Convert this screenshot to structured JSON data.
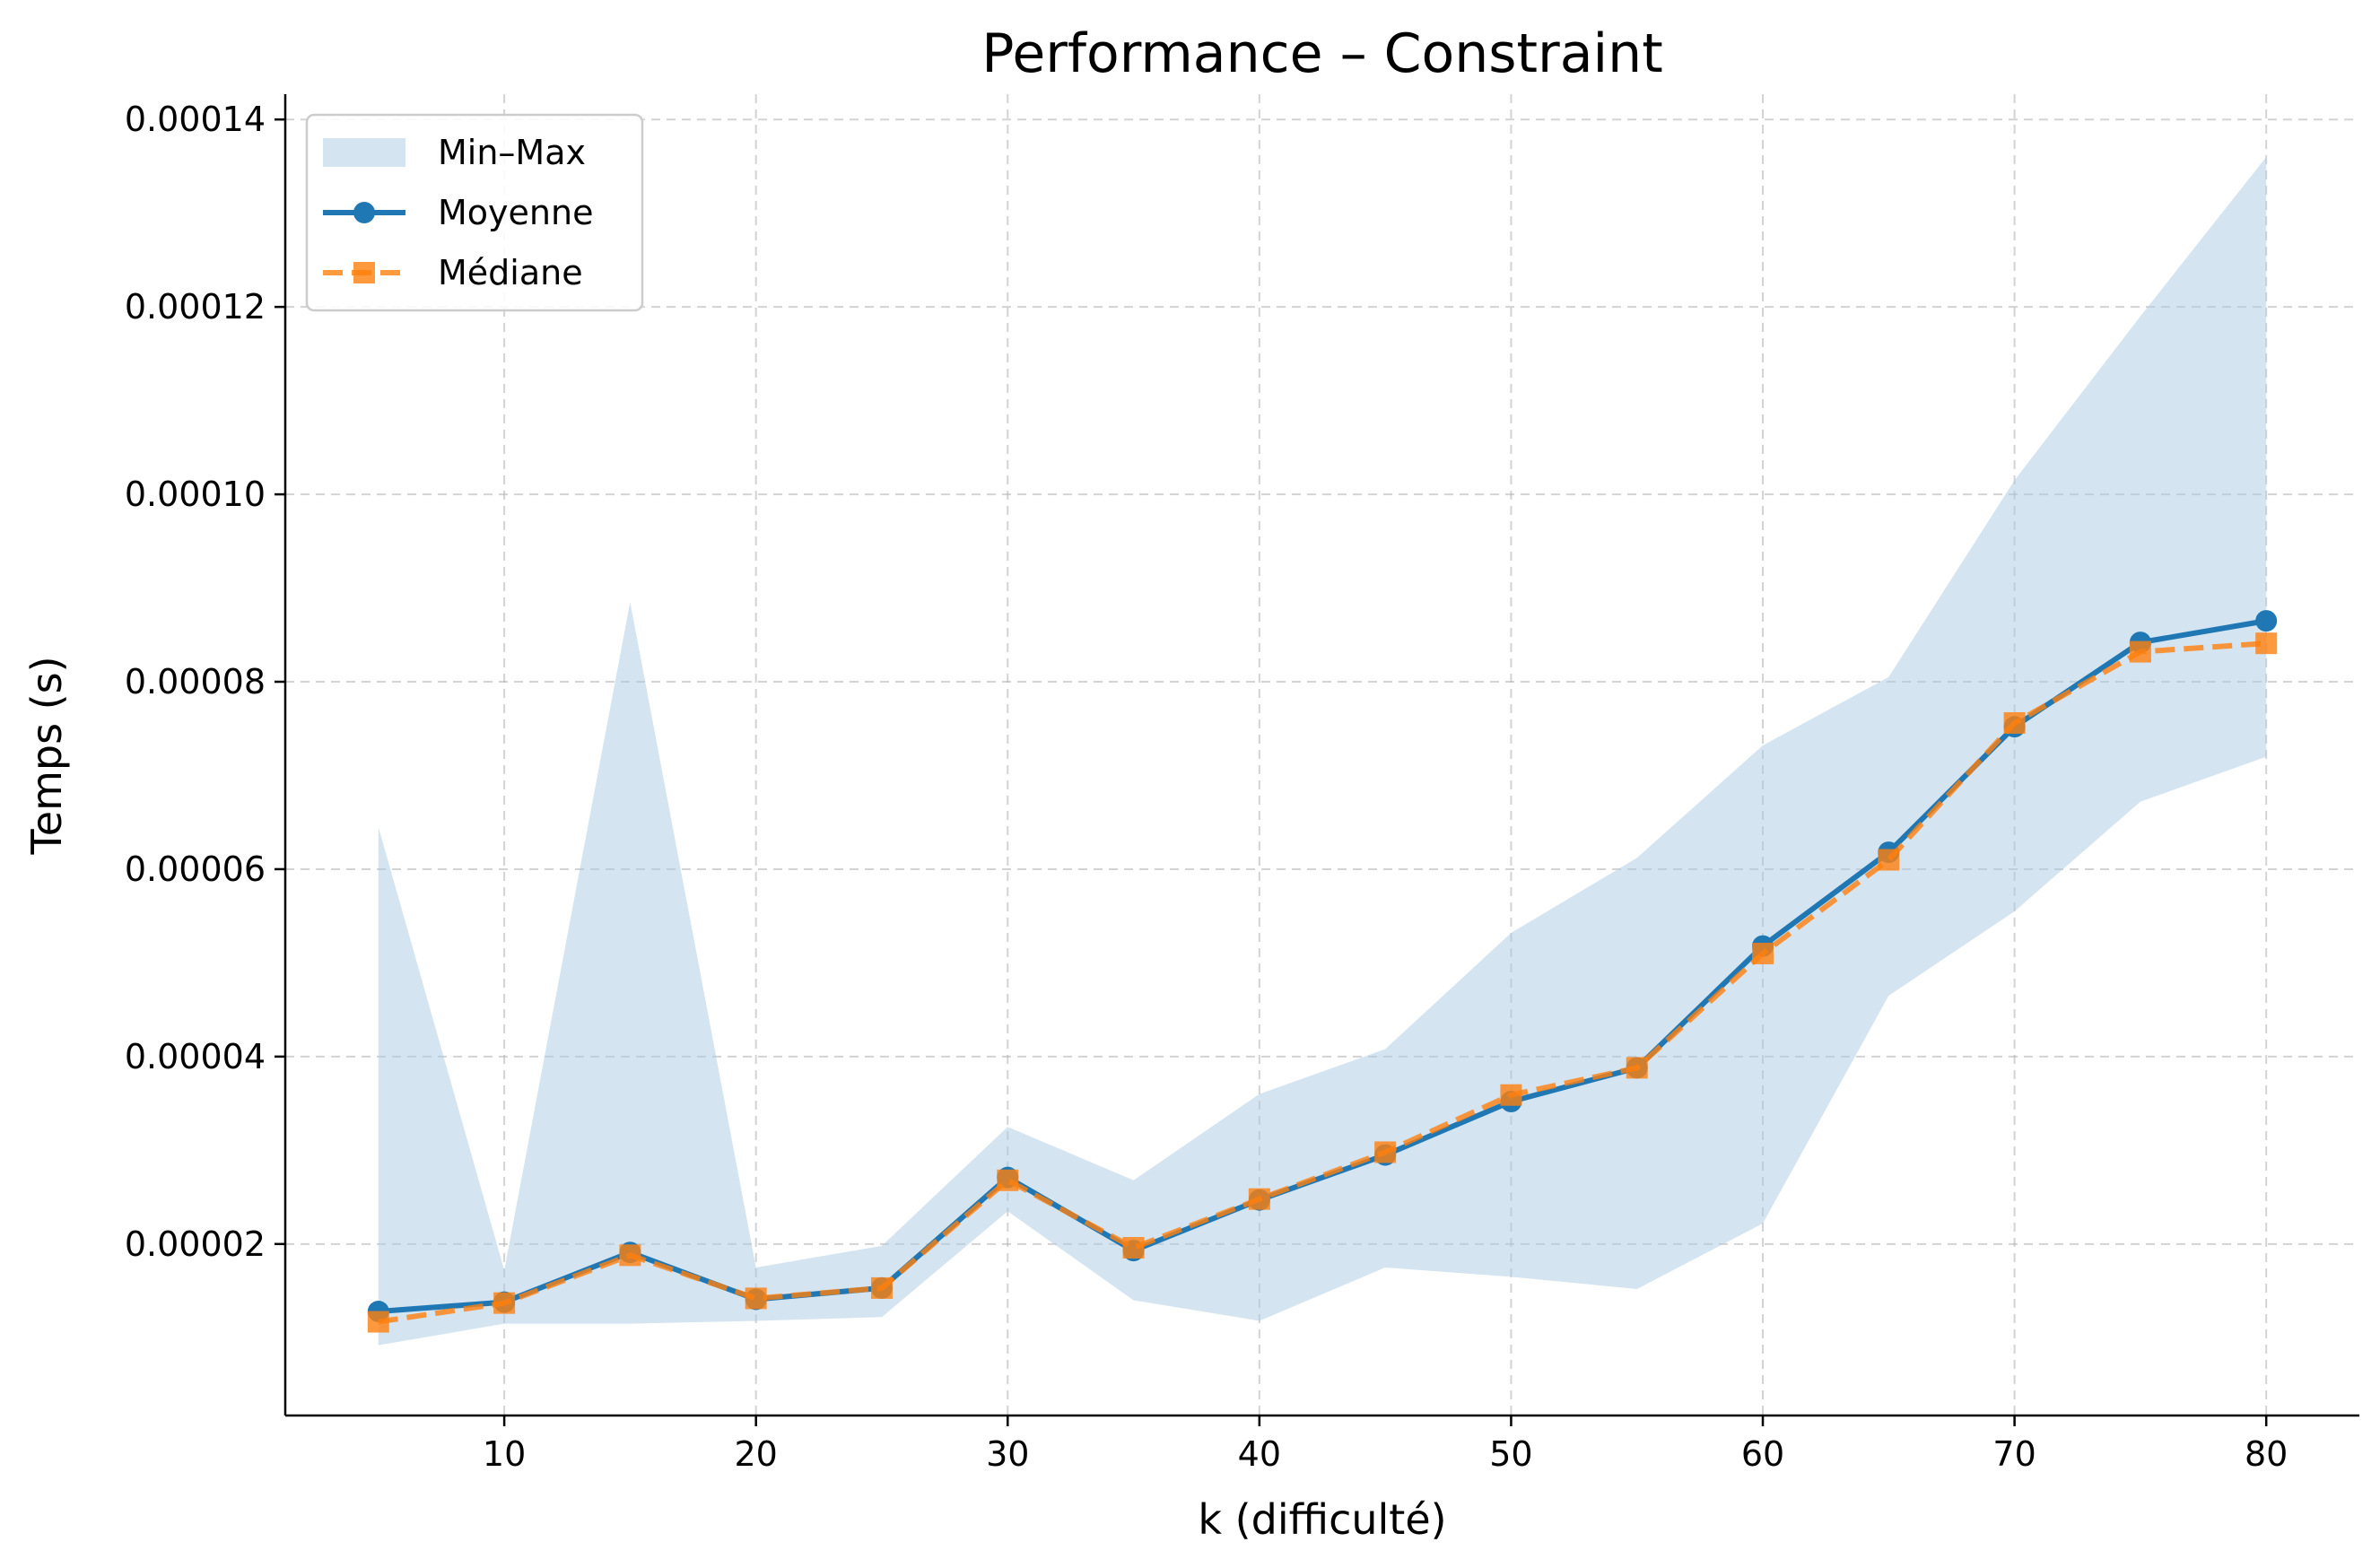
{
  "chart_data": {
    "type": "line",
    "title": "Performance – Constraint",
    "xlabel": "k (difficulté)",
    "ylabel": "Temps (s)",
    "xlim": [
      1.3,
      83.7
    ],
    "ylim": [
      1.7e-06,
      0.0001427
    ],
    "xticks": [
      10,
      20,
      30,
      40,
      50,
      60,
      70,
      80
    ],
    "xtick_labels": [
      "10",
      "20",
      "30",
      "40",
      "50",
      "60",
      "70",
      "80"
    ],
    "yticks": [
      2e-05,
      4e-05,
      6e-05,
      8e-05,
      0.0001,
      0.00012,
      0.00014
    ],
    "ytick_labels": [
      "0.00002",
      "0.00004",
      "0.00006",
      "0.00008",
      "0.00010",
      "0.00012",
      "0.00014"
    ],
    "grid": true,
    "legend_position": "top-left",
    "x": [
      5,
      10,
      15,
      20,
      25,
      30,
      35,
      40,
      45,
      50,
      55,
      60,
      65,
      70,
      75,
      80
    ],
    "band": {
      "name": "Min–Max",
      "color": "#a9c9e2",
      "min": [
        9.2e-06,
        1.15e-05,
        1.15e-05,
        1.18e-05,
        1.22e-05,
        2.35e-05,
        1.4e-05,
        1.18e-05,
        1.75e-05,
        1.65e-05,
        1.52e-05,
        2.22e-05,
        4.65e-05,
        5.55e-05,
        6.72e-05,
        7.2e-05
      ],
      "max": [
        6.45e-05,
        1.72e-05,
        8.85e-05,
        1.75e-05,
        1.98e-05,
        3.25e-05,
        2.68e-05,
        3.6e-05,
        4.08e-05,
        5.32e-05,
        6.12e-05,
        7.32e-05,
        8.05e-05,
        0.0001015,
        0.000119,
        0.000136
      ]
    },
    "series": [
      {
        "name": "Moyenne",
        "color": "#1f77b4",
        "marker": "circle",
        "line_style": "solid",
        "values": [
          1.28e-05,
          1.38e-05,
          1.91e-05,
          1.41e-05,
          1.53e-05,
          2.71e-05,
          1.93e-05,
          2.47e-05,
          2.95e-05,
          3.52e-05,
          3.88e-05,
          5.18e-05,
          6.18e-05,
          7.52e-05,
          8.42e-05,
          8.65e-05
        ]
      },
      {
        "name": "Médiane",
        "color": "#ff7f0e",
        "marker": "square",
        "line_style": "dashed",
        "values": [
          1.17e-05,
          1.37e-05,
          1.88e-05,
          1.42e-05,
          1.53e-05,
          2.68e-05,
          1.96e-05,
          2.48e-05,
          2.98e-05,
          3.59e-05,
          3.88e-05,
          5.1e-05,
          6.1e-05,
          7.56e-05,
          8.32e-05,
          8.41e-05
        ]
      }
    ]
  }
}
